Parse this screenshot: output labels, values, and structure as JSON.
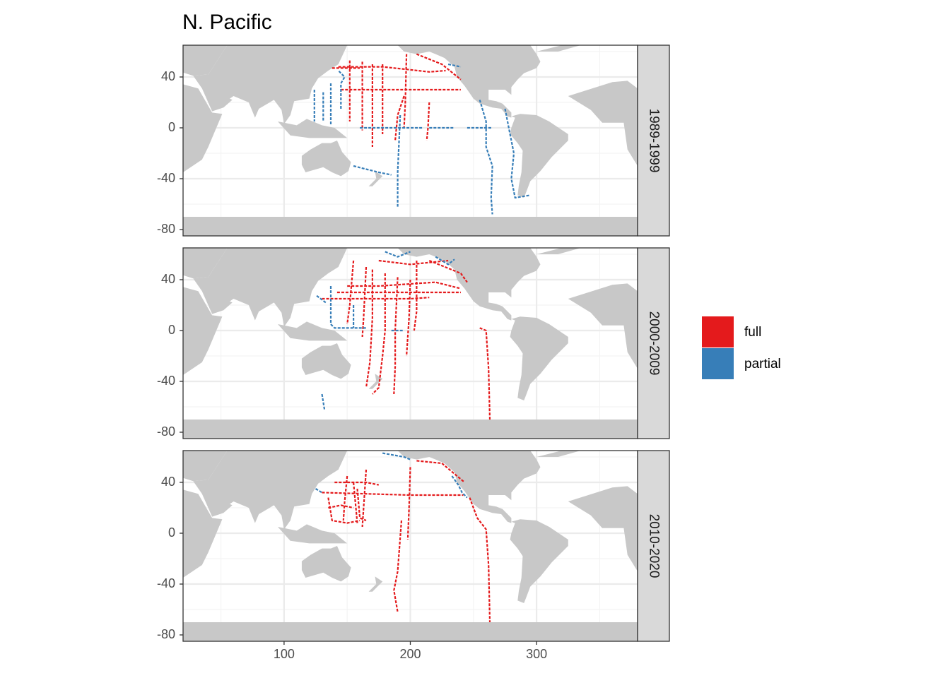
{
  "chart_data": {
    "type": "map",
    "title": "N. Pacific",
    "x_ticks": [
      100,
      200,
      300
    ],
    "y_ticks": [
      40,
      0,
      -40,
      -80
    ],
    "xlim": [
      20,
      380
    ],
    "ylim": [
      -85,
      65
    ],
    "grid": true,
    "legend_position": "right",
    "colors": {
      "full": "#e41a1c",
      "partial": "#377eb8",
      "land": "#c8c8c8",
      "grid": "#ebebeb",
      "strip": "#d9d9d9"
    },
    "legend": [
      {
        "key": "full",
        "label": "full"
      },
      {
        "key": "partial",
        "label": "partial"
      }
    ],
    "panels": [
      {
        "label": "1989-1999",
        "tracks": [
          {
            "type": "full",
            "points": [
              [
                143,
                48
              ],
              [
                160,
                48
              ],
              [
                178,
                48
              ],
              [
                197,
                46
              ],
              [
                215,
                44
              ],
              [
                228,
                45
              ]
            ]
          },
          {
            "type": "full",
            "points": [
              [
                162,
                52
              ],
              [
                162,
                25
              ],
              [
                162,
                10
              ],
              [
                162,
                -2
              ]
            ]
          },
          {
            "type": "full",
            "points": [
              [
                170,
                50
              ],
              [
                170,
                10
              ],
              [
                170,
                -15
              ]
            ]
          },
          {
            "type": "full",
            "points": [
              [
                178,
                50
              ],
              [
                178,
                0
              ],
              [
                178,
                -5
              ]
            ]
          },
          {
            "type": "full",
            "points": [
              [
                195,
                25
              ],
              [
                190,
                10
              ],
              [
                188,
                -10
              ]
            ]
          },
          {
            "type": "full",
            "points": [
              [
                197,
                58
              ],
              [
                196,
                20
              ],
              [
                195,
                0
              ]
            ]
          },
          {
            "type": "full",
            "points": [
              [
                152,
                53
              ],
              [
                152,
                20
              ],
              [
                152,
                5
              ]
            ]
          },
          {
            "type": "full",
            "points": [
              [
                205,
                58
              ],
              [
                225,
                50
              ],
              [
                240,
                38
              ]
            ]
          },
          {
            "type": "full",
            "points": [
              [
                215,
                20
              ],
              [
                214,
                0
              ],
              [
                213,
                -10
              ]
            ]
          },
          {
            "type": "full",
            "points": [
              [
                145,
                30
              ],
              [
                185,
                30
              ],
              [
                240,
                30
              ]
            ]
          },
          {
            "type": "full",
            "points": [
              [
                138,
                47
              ],
              [
                160,
                47
              ]
            ]
          },
          {
            "type": "partial",
            "points": [
              [
                255,
                22
              ],
              [
                260,
                5
              ],
              [
                260,
                -15
              ],
              [
                265,
                -30
              ],
              [
                264,
                -55
              ],
              [
                265,
                -68
              ]
            ]
          },
          {
            "type": "partial",
            "points": [
              [
                275,
                15
              ],
              [
                278,
                0
              ],
              [
                282,
                -20
              ],
              [
                280,
                -40
              ],
              [
                283,
                -55
              ],
              [
                295,
                -53
              ]
            ]
          },
          {
            "type": "partial",
            "points": [
              [
                160,
                0
              ],
              [
                210,
                0
              ]
            ]
          },
          {
            "type": "partial",
            "points": [
              [
                215,
                0
              ],
              [
                235,
                0
              ]
            ]
          },
          {
            "type": "partial",
            "points": [
              [
                245,
                0
              ],
              [
                265,
                0
              ]
            ]
          },
          {
            "type": "partial",
            "points": [
              [
                145,
                15
              ],
              [
                145,
                35
              ],
              [
                148,
                40
              ],
              [
                143,
                45
              ]
            ]
          },
          {
            "type": "partial",
            "points": [
              [
                131,
                28
              ],
              [
                131,
                5
              ]
            ]
          },
          {
            "type": "partial",
            "points": [
              [
                137,
                35
              ],
              [
                137,
                2
              ]
            ]
          },
          {
            "type": "partial",
            "points": [
              [
                124,
                30
              ],
              [
                124,
                5
              ]
            ]
          },
          {
            "type": "partial",
            "points": [
              [
                192,
                10
              ],
              [
                190,
                -35
              ],
              [
                190,
                -62
              ]
            ]
          },
          {
            "type": "partial",
            "points": [
              [
                155,
                -30
              ],
              [
                175,
                -35
              ],
              [
                185,
                -37
              ]
            ]
          },
          {
            "type": "partial",
            "points": [
              [
                230,
                50
              ],
              [
                240,
                48
              ]
            ]
          }
        ]
      },
      {
        "label": "2000-2009",
        "tracks": [
          {
            "type": "full",
            "points": [
              [
                130,
                25
              ],
              [
                160,
                25
              ],
              [
                200,
                25
              ],
              [
                215,
                26
              ]
            ]
          },
          {
            "type": "full",
            "points": [
              [
                142,
                30
              ],
              [
                200,
                30
              ],
              [
                240,
                30
              ]
            ]
          },
          {
            "type": "full",
            "points": [
              [
                150,
                35
              ],
              [
                175,
                35
              ],
              [
                220,
                38
              ],
              [
                240,
                33
              ]
            ]
          },
          {
            "type": "full",
            "points": [
              [
                170,
                48
              ],
              [
                170,
                10
              ],
              [
                168,
                -25
              ],
              [
                165,
                -45
              ]
            ]
          },
          {
            "type": "full",
            "points": [
              [
                180,
                45
              ],
              [
                180,
                0
              ],
              [
                178,
                -20
              ],
              [
                175,
                -45
              ],
              [
                170,
                -50
              ]
            ]
          },
          {
            "type": "full",
            "points": [
              [
                190,
                42
              ],
              [
                188,
                0
              ],
              [
                188,
                -28
              ],
              [
                187,
                -50
              ]
            ]
          },
          {
            "type": "full",
            "points": [
              [
                165,
                50
              ],
              [
                163,
                10
              ],
              [
                162,
                -5
              ]
            ]
          },
          {
            "type": "full",
            "points": [
              [
                155,
                55
              ],
              [
                152,
                20
              ],
              [
                150,
                5
              ]
            ]
          },
          {
            "type": "full",
            "points": [
              [
                200,
                40
              ],
              [
                199,
                10
              ],
              [
                197,
                -20
              ]
            ]
          },
          {
            "type": "full",
            "points": [
              [
                205,
                55
              ],
              [
                205,
                15
              ],
              [
                203,
                0
              ]
            ]
          },
          {
            "type": "full",
            "points": [
              [
                215,
                55
              ],
              [
                240,
                45
              ],
              [
                245,
                38
              ]
            ]
          },
          {
            "type": "full",
            "points": [
              [
                255,
                2
              ],
              [
                260,
                0
              ],
              [
                262,
                -30
              ],
              [
                263,
                -70
              ]
            ]
          },
          {
            "type": "full",
            "points": [
              [
                175,
                55
              ],
              [
                200,
                52
              ],
              [
                230,
                55
              ]
            ]
          },
          {
            "type": "partial",
            "points": [
              [
                137,
                35
              ],
              [
                137,
                5
              ],
              [
                140,
                2
              ],
              [
                165,
                2
              ]
            ]
          },
          {
            "type": "partial",
            "points": [
              [
                155,
                20
              ],
              [
                155,
                2
              ]
            ]
          },
          {
            "type": "partial",
            "points": [
              [
                185,
                0
              ],
              [
                195,
                0
              ]
            ]
          },
          {
            "type": "partial",
            "points": [
              [
                133,
                22
              ],
              [
                125,
                28
              ]
            ]
          },
          {
            "type": "partial",
            "points": [
              [
                130,
                -50
              ],
              [
                132,
                -62
              ]
            ]
          },
          {
            "type": "partial",
            "points": [
              [
                180,
                62
              ],
              [
                190,
                58
              ],
              [
                200,
                62
              ]
            ]
          },
          {
            "type": "partial",
            "points": [
              [
                220,
                58
              ],
              [
                230,
                52
              ],
              [
                235,
                56
              ]
            ]
          }
        ]
      },
      {
        "label": "2010-2020",
        "tracks": [
          {
            "type": "full",
            "points": [
              [
                130,
                32
              ],
              [
                165,
                31
              ],
              [
                200,
                30
              ],
              [
                242,
                30
              ]
            ]
          },
          {
            "type": "full",
            "points": [
              [
                135,
                28
              ],
              [
                138,
                10
              ],
              [
                150,
                8
              ],
              [
                160,
                10
              ]
            ]
          },
          {
            "type": "full",
            "points": [
              [
                165,
                50
              ],
              [
                163,
                20
              ],
              [
                162,
                5
              ]
            ]
          },
          {
            "type": "full",
            "points": [
              [
                150,
                45
              ],
              [
                148,
                25
              ],
              [
                147,
                10
              ]
            ]
          },
          {
            "type": "full",
            "points": [
              [
                155,
                40
              ],
              [
                158,
                8
              ]
            ]
          },
          {
            "type": "full",
            "points": [
              [
                158,
                35
              ],
              [
                160,
                12
              ],
              [
                165,
                10
              ]
            ]
          },
          {
            "type": "full",
            "points": [
              [
                200,
                52
              ],
              [
                199,
                20
              ],
              [
                198,
                -5
              ]
            ]
          },
          {
            "type": "full",
            "points": [
              [
                193,
                10
              ],
              [
                190,
                -30
              ],
              [
                187,
                -45
              ],
              [
                190,
                -62
              ]
            ]
          },
          {
            "type": "full",
            "points": [
              [
                205,
                57
              ],
              [
                225,
                55
              ],
              [
                243,
                40
              ]
            ]
          },
          {
            "type": "full",
            "points": [
              [
                247,
                28
              ],
              [
                253,
                12
              ],
              [
                260,
                3
              ],
              [
                262,
                -25
              ],
              [
                263,
                -70
              ]
            ]
          },
          {
            "type": "full",
            "points": [
              [
                140,
                40
              ],
              [
                165,
                40
              ],
              [
                175,
                38
              ]
            ]
          },
          {
            "type": "full",
            "points": [
              [
                135,
                20
              ],
              [
                145,
                22
              ],
              [
                155,
                20
              ]
            ]
          },
          {
            "type": "partial",
            "points": [
              [
                178,
                63
              ],
              [
                195,
                60
              ],
              [
                200,
                58
              ]
            ]
          },
          {
            "type": "partial",
            "points": [
              [
                233,
                45
              ],
              [
                238,
                38
              ],
              [
                241,
                32
              ],
              [
                245,
                28
              ]
            ]
          },
          {
            "type": "partial",
            "points": [
              [
                125,
                35
              ],
              [
                130,
                32
              ]
            ]
          }
        ]
      }
    ]
  }
}
